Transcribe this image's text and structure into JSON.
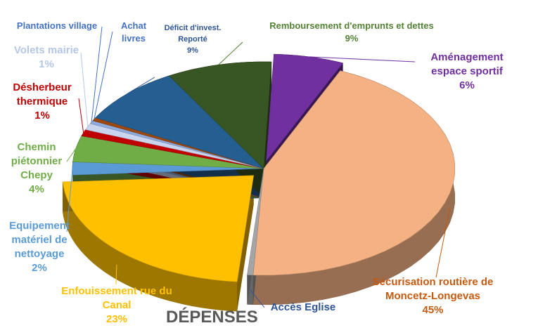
{
  "chart_data": {
    "type": "pie",
    "title": "DÉPENSES",
    "categories": [
      "Aménagement espace sportif",
      "Sécurisation routière de Moncetz-Longevas",
      "Accès Eglise",
      "Enfouissement rue du Canal",
      "Equipement matériel de nettoyage",
      "Chemin piétonnier Chepy",
      "Désherbeur thermique",
      "Volets mairie",
      "Plantations village",
      "Achat livres",
      "Déficit d'invest. Reporté",
      "Remboursement d'emprunts et dettes"
    ],
    "values": [
      6,
      45,
      0.5,
      23,
      2,
      4,
      1,
      1,
      0.5,
      0.5,
      9,
      9
    ],
    "value_labels": [
      "6%",
      "45%",
      null,
      "23%",
      "2%",
      "4%",
      "1%",
      "1%",
      null,
      null,
      "9%",
      "9%"
    ],
    "colors": [
      "#7030a0",
      "#f4b183",
      "#a5a5a5",
      "#ffc000",
      "#5b9bd5",
      "#70ad47",
      "#c00000",
      "#c9d5ee",
      "#8faadc",
      "#9e480e",
      "#255e91",
      "#375623"
    ]
  }
}
